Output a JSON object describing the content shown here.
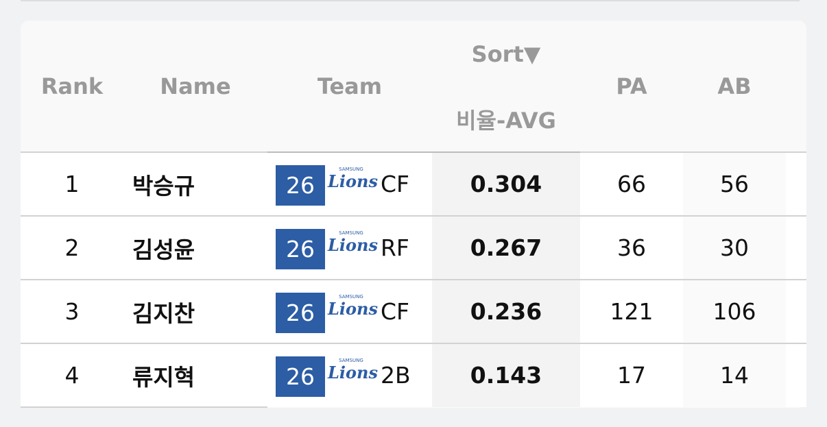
{
  "header": {
    "rank": "Rank",
    "name": "Name",
    "team": "Team",
    "sort": "Sort▼",
    "avg": "비율-AVG",
    "pa": "PA",
    "ab": "AB"
  },
  "logo": {
    "top": "SAMSUNG",
    "main": "Lions"
  },
  "table": {
    "rows": [
      {
        "rank": 1,
        "name": "박승규",
        "number": 26,
        "position": "CF",
        "avg": 0.304,
        "pa": 66,
        "ab": 56
      },
      {
        "rank": 2,
        "name": "김성윤",
        "number": 26,
        "position": "RF",
        "avg": 0.267,
        "pa": 36,
        "ab": 30
      },
      {
        "rank": 3,
        "name": "김지찬",
        "number": 26,
        "position": "CF",
        "avg": 0.236,
        "pa": 121,
        "ab": 106
      },
      {
        "rank": 4,
        "name": "류지혁",
        "number": 26,
        "position": "2B",
        "avg": 0.143,
        "pa": 17,
        "ab": 14
      }
    ]
  }
}
